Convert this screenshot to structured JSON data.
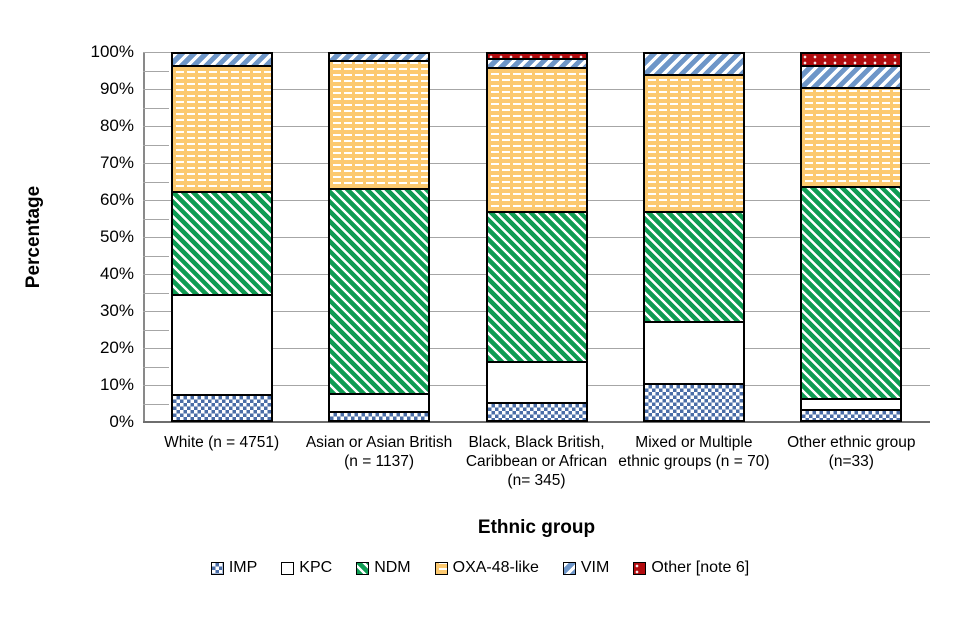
{
  "chart_data": {
    "type": "bar",
    "subtype": "100%-stacked-vertical",
    "title": "",
    "xlabel": "Ethnic group",
    "ylabel": "Percentage",
    "ylim": [
      0,
      100
    ],
    "y_ticks": [
      "0%",
      "10%",
      "20%",
      "30%",
      "40%",
      "50%",
      "60%",
      "70%",
      "80%",
      "90%",
      "100%"
    ],
    "grid": "major-horizontal-on, minor-ticks-5pct",
    "legend_position": "bottom",
    "categories": [
      "White (n = 4751)",
      "Asian or Asian British (n = 1137)",
      "Black, Black British, Caribbean or African (n= 345)",
      "Mixed or Multiple ethnic groups (n = 70)",
      "Other ethnic group (n=33)"
    ],
    "series": [
      {
        "name": "IMP",
        "pattern": "blue-checker",
        "color": "#4a6da7",
        "values": [
          7,
          2.5,
          5,
          10,
          3
        ]
      },
      {
        "name": "KPC",
        "pattern": "plain-white",
        "color": "#ffffff",
        "values": [
          27.5,
          5,
          11,
          17,
          3
        ]
      },
      {
        "name": "NDM",
        "pattern": "green-diagonal",
        "color": "#0f9c53",
        "values": [
          28,
          56,
          41,
          30,
          58
        ]
      },
      {
        "name": "OXA-48-like",
        "pattern": "orange-dashed",
        "color": "#fcc970",
        "values": [
          34.5,
          35,
          39.5,
          37.5,
          27
        ]
      },
      {
        "name": "VIM",
        "pattern": "blue-diagonal",
        "color": "#6e96c8",
        "values": [
          3,
          1.5,
          2.5,
          5.5,
          6
        ]
      },
      {
        "name": "Other [note 6]",
        "pattern": "dark-red-dotted",
        "color": "#b20b0e",
        "values": [
          0,
          0,
          1,
          0,
          3
        ]
      }
    ]
  }
}
